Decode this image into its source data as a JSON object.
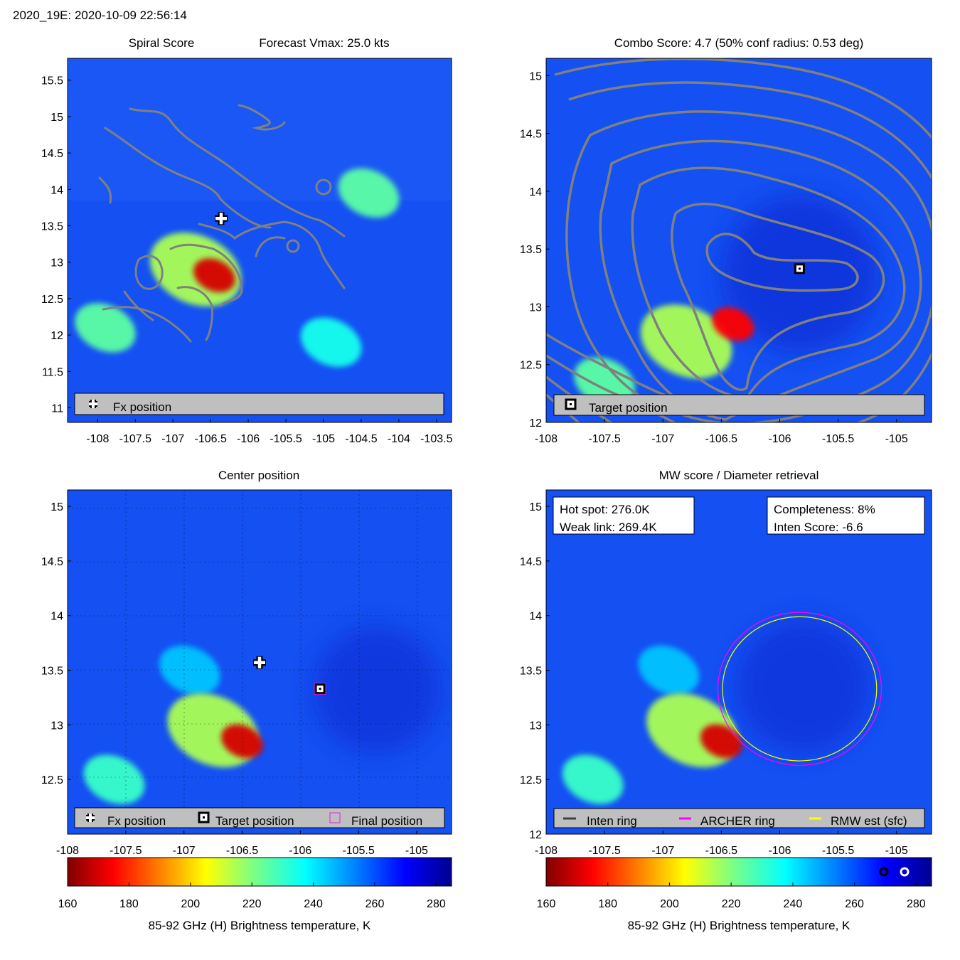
{
  "header": {
    "text": "2020_19E: 2020-10-09 22:56:14"
  },
  "panels": {
    "spiral": {
      "title_left": "Spiral Score",
      "title_right": "Forecast Vmax: 25.0 kts",
      "legend": {
        "fx": "Fx position"
      }
    },
    "combo": {
      "title": "Combo Score: 4.7  (50% conf radius: 0.53 deg)",
      "legend": {
        "target": "Target position"
      }
    },
    "center": {
      "title": "Center position",
      "legend": {
        "fx": "Fx position",
        "target": "Target position",
        "final": "Final position"
      }
    },
    "mw": {
      "title": "MW score / Diameter retrieval",
      "box_left": {
        "line1": "Hot spot: 276.0K",
        "line2": "Weak link: 269.4K"
      },
      "box_right": {
        "line1": "Completeness: 8%",
        "line2": "Inten Score: -6.6"
      },
      "legend": {
        "inten": "Inten ring",
        "archer": "ARCHER ring",
        "rmw": "RMW est (sfc)"
      }
    }
  },
  "colors": {
    "fx_marker": "#ffffff",
    "target_marker": "#000000",
    "final_marker": "#e020e0",
    "inten_ring": "#404040",
    "archer_ring": "#ff00ff",
    "rmw_ring": "#ffff00",
    "contour": "#808080"
  },
  "chart_data": [
    {
      "id": "spiral",
      "type": "heatmap",
      "title": "Spiral Score   Forecast Vmax: 25.0 kts",
      "xlim": [
        -108.4,
        -103.3
      ],
      "ylim": [
        10.8,
        15.8
      ],
      "xticks": [
        -108,
        -107.5,
        -107,
        -106.5,
        -106,
        -105.5,
        -105,
        -104.5,
        -104,
        -103.5
      ],
      "xtick_labels": [
        "-108",
        "-107.5",
        "-107",
        "-106.5",
        "-106",
        "-105.5",
        "-105",
        "-104.5",
        "-104",
        "-103.5"
      ],
      "yticks": [
        11,
        11.5,
        12,
        12.5,
        13,
        13.5,
        14,
        14.5,
        15,
        15.5
      ],
      "ytick_labels": [
        "11",
        "11.5",
        "12",
        "12.5",
        "13",
        "13.5",
        "14",
        "14.5",
        "15",
        "15.5"
      ],
      "fx_position": {
        "lon": -106.36,
        "lat": 13.6
      },
      "cold_spots": [
        {
          "lon": -106.45,
          "lat": 12.82,
          "tb": 170
        },
        {
          "lon": -106.7,
          "lat": 12.9,
          "tb": 215
        },
        {
          "lon": -104.4,
          "lat": 13.95,
          "tb": 225
        },
        {
          "lon": -107.9,
          "lat": 12.1,
          "tb": 225
        },
        {
          "lon": -104.9,
          "lat": 11.9,
          "tb": 235
        }
      ]
    },
    {
      "id": "combo",
      "type": "heatmap",
      "title": "Combo Score: 4.7  (50% conf radius: 0.53 deg)",
      "xlim": [
        -108,
        -104.7
      ],
      "ylim": [
        12,
        15.15
      ],
      "xticks": [
        -108,
        -107.5,
        -107,
        -106.5,
        -106,
        -105.5,
        -105
      ],
      "xtick_labels": [
        "-108",
        "-107.5",
        "-107",
        "-106.5",
        "-106",
        "-105.5",
        "-105"
      ],
      "yticks": [
        12,
        12.5,
        13,
        13.5,
        14,
        14.5,
        15
      ],
      "ytick_labels": [
        "12",
        "12.5",
        "13",
        "13.5",
        "14",
        "14.5",
        "15"
      ],
      "target_position": {
        "lon": -105.83,
        "lat": 13.33
      },
      "cold_spots": [
        {
          "lon": -106.4,
          "lat": 12.85,
          "tb": 175
        },
        {
          "lon": -106.8,
          "lat": 12.7,
          "tb": 215
        },
        {
          "lon": -107.5,
          "lat": 12.35,
          "tb": 225
        }
      ]
    },
    {
      "id": "center",
      "type": "heatmap",
      "title": "Center position",
      "xlim": [
        -108,
        -104.7
      ],
      "ylim": [
        12,
        15.15
      ],
      "xticks": [
        -108,
        -107.5,
        -107,
        -106.5,
        -106,
        -105.5,
        -105
      ],
      "xtick_labels": [
        "-108",
        "-107.5",
        "-107",
        "-106.5",
        "-106",
        "-105.5",
        "-105"
      ],
      "yticks": [
        12.5,
        13,
        13.5,
        14,
        14.5,
        15
      ],
      "ytick_labels": [
        "12.5",
        "13",
        "13.5",
        "14",
        "14.5",
        "15"
      ],
      "fx_position": {
        "lon": -106.35,
        "lat": 13.57
      },
      "target_position": {
        "lon": -105.83,
        "lat": 13.33
      },
      "final_position": {
        "lon": -105.83,
        "lat": 13.33
      },
      "cold_spots": [
        {
          "lon": -106.5,
          "lat": 12.85,
          "tb": 170
        },
        {
          "lon": -106.75,
          "lat": 12.95,
          "tb": 215
        },
        {
          "lon": -107.6,
          "lat": 12.5,
          "tb": 230
        },
        {
          "lon": -106.95,
          "lat": 13.5,
          "tb": 245
        }
      ]
    },
    {
      "id": "mw",
      "type": "heatmap",
      "title": "MW score / Diameter retrieval",
      "xlim": [
        -108,
        -104.7
      ],
      "ylim": [
        12,
        15.15
      ],
      "xticks": [
        -108,
        -107.5,
        -107,
        -106.5,
        -106,
        -105.5,
        -105
      ],
      "xtick_labels": [
        "-108",
        "-107.5",
        "-107",
        "-106.5",
        "-106",
        "-105.5",
        "-105"
      ],
      "yticks": [
        12,
        12.5,
        13,
        13.5,
        14,
        14.5,
        15
      ],
      "ytick_labels": [
        "12",
        "12.5",
        "13",
        "13.5",
        "14",
        "14.5",
        "15"
      ],
      "rings": [
        {
          "name": "ARCHER ring",
          "lon": -105.83,
          "lat": 13.33,
          "radius_deg": 0.7
        },
        {
          "name": "RMW est (sfc)",
          "lon": -105.83,
          "lat": 13.33,
          "radius_deg": 0.66
        }
      ],
      "cold_spots": [
        {
          "lon": -106.5,
          "lat": 12.85,
          "tb": 170
        },
        {
          "lon": -106.75,
          "lat": 12.95,
          "tb": 215
        },
        {
          "lon": -107.6,
          "lat": 12.5,
          "tb": 230
        },
        {
          "lon": -106.95,
          "lat": 13.5,
          "tb": 245
        }
      ]
    },
    {
      "id": "colorbar",
      "type": "colorbar",
      "label": "85-92 GHz (H) Brightness temperature, K",
      "range": [
        160,
        285
      ],
      "ticks": [
        160,
        180,
        200,
        220,
        240,
        260,
        280
      ],
      "tick_labels": [
        "160",
        "180",
        "200",
        "220",
        "240",
        "260",
        "280"
      ]
    }
  ]
}
